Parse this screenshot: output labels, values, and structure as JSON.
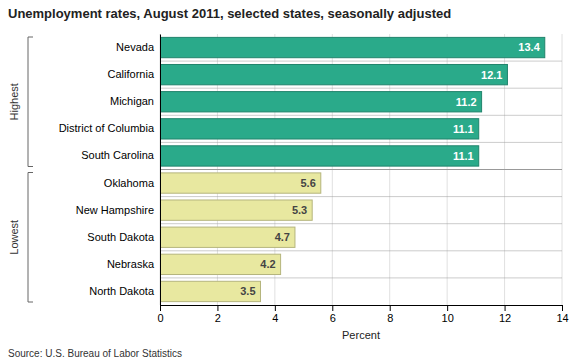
{
  "chart_data": {
    "type": "bar",
    "orientation": "horizontal",
    "title": "Unemployment rates, August 2011, selected states, seasonally adjusted",
    "categories": [
      "North Dakota",
      "Nebraska",
      "South Dakota",
      "New Hampshire",
      "Oklahoma",
      "South Carolina",
      "District of Columbia",
      "Michigan",
      "California",
      "Nevada"
    ],
    "values": [
      3.5,
      4.2,
      4.7,
      5.3,
      5.6,
      11.1,
      11.1,
      11.2,
      12.1,
      13.4
    ],
    "colors": [
      "#e8e8a0",
      "#e8e8a0",
      "#e8e8a0",
      "#e8e8a0",
      "#e8e8a0",
      "#2aaa8a",
      "#2aaa8a",
      "#2aaa8a",
      "#2aaa8a",
      "#2aaa8a"
    ],
    "xlabel": "Percent",
    "xlim": [
      0,
      14
    ],
    "xticks": [
      0,
      2,
      4,
      6,
      8,
      10,
      12,
      14
    ],
    "grid": true,
    "data_labels": true,
    "annotations": [
      "Source: U.S. Bureau of Labor Statistics",
      "Highest",
      "Lowest"
    ]
  }
}
